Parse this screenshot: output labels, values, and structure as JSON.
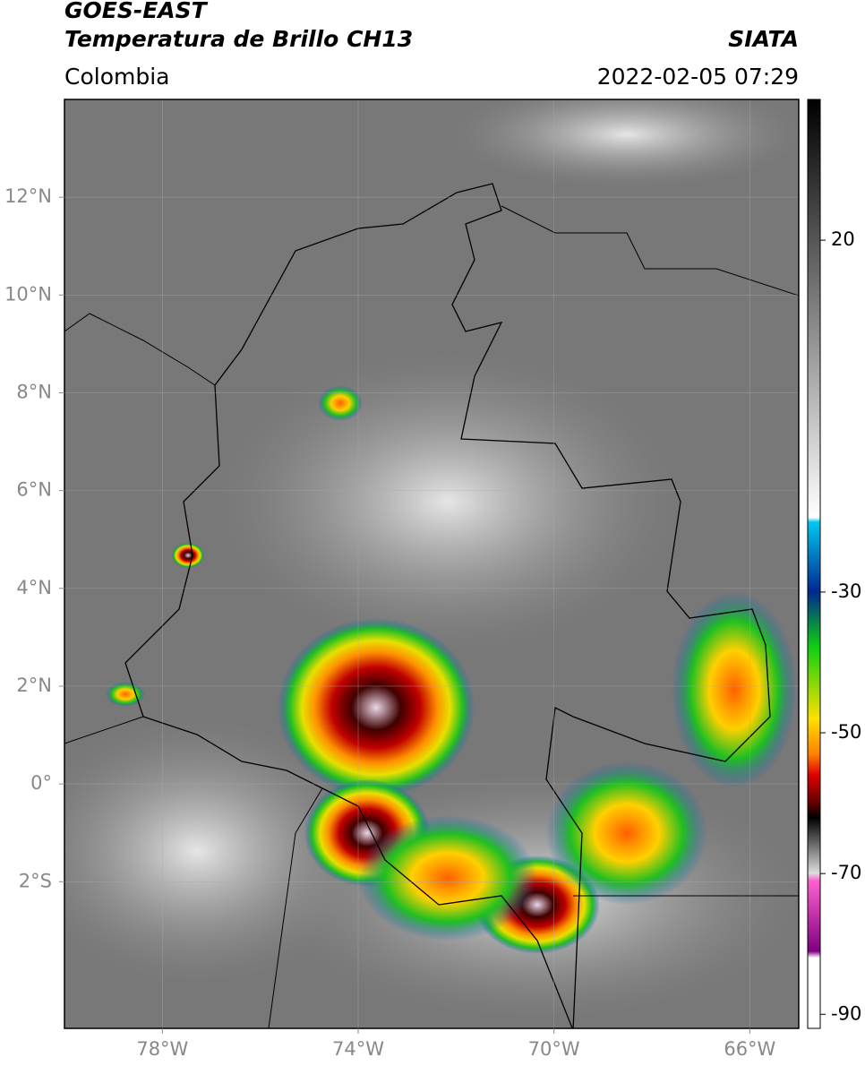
{
  "header": {
    "title": "GOES-EAST",
    "subtitle": "Temperatura de Brillo CH13",
    "source": "SIATA",
    "region": "Colombia",
    "datetime": "2022-02-05 07:29"
  },
  "map": {
    "xlim": [
      -80,
      -65
    ],
    "ylim": [
      -5,
      14
    ],
    "xticks": [
      {
        "value": -78,
        "label": "78°W"
      },
      {
        "value": -74,
        "label": "74°W"
      },
      {
        "value": -70,
        "label": "70°W"
      },
      {
        "value": -66,
        "label": "66°W"
      }
    ],
    "yticks": [
      {
        "value": 12,
        "label": "12°N"
      },
      {
        "value": 10,
        "label": "10°N"
      },
      {
        "value": 8,
        "label": "8°N"
      },
      {
        "value": 6,
        "label": "6°N"
      },
      {
        "value": 4,
        "label": "4°N"
      },
      {
        "value": 2,
        "label": "2°N"
      },
      {
        "value": 0,
        "label": "0°"
      },
      {
        "value": -2,
        "label": "2°S"
      }
    ]
  },
  "colorbar": {
    "lim": [
      -92,
      40
    ],
    "ticks": [
      20,
      -30,
      -50,
      -70,
      -90
    ]
  }
}
